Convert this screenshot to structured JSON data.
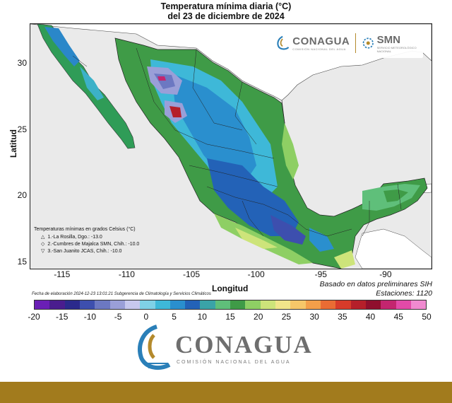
{
  "title": {
    "line1": "Temperatura mínima diaria (°C)",
    "line2": "del 23 de diciembre de 2024"
  },
  "map": {
    "x_axis": {
      "label": "Longitud",
      "ticks": [
        {
          "value": -115,
          "label": "-115"
        },
        {
          "value": -110,
          "label": "-110"
        },
        {
          "value": -105,
          "label": "-105"
        },
        {
          "value": -100,
          "label": "-100"
        },
        {
          "value": -95,
          "label": "-95"
        },
        {
          "value": -90,
          "label": "-90"
        }
      ]
    },
    "y_axis": {
      "label": "Latitud",
      "ticks": [
        {
          "value": 30,
          "label": "30"
        },
        {
          "value": 25,
          "label": "25"
        },
        {
          "value": 20,
          "label": "20"
        },
        {
          "value": 15,
          "label": "15"
        }
      ]
    },
    "extent": {
      "lon": [
        -117.5,
        -86.5
      ],
      "lat": [
        14.5,
        33
      ]
    },
    "legend": {
      "title": "Temperaturas mínimas en grados Celsius (°C)",
      "entries": [
        {
          "symbol": "△",
          "text": "1.-La Rosilla, Dgo.: -13.0"
        },
        {
          "symbol": "◇",
          "text": "2.-Cumbres de Majalca SMN, Chih.: -10.0"
        },
        {
          "symbol": "▽",
          "text": "3.-San Juanito JCAS, Chih.: -10.0"
        }
      ]
    },
    "basis_note": "Basado en datos preliminares SIH",
    "stations": "Estaciones: 1120",
    "footer_note": "Fecha de elaboración 2024-12-23 13:01:21 Subgerencia de Climatología y Servicios Climáticos",
    "colors": {
      "ocean": "#eaeaea",
      "us_land": "#ffffff",
      "border": "#222222"
    }
  },
  "logos": {
    "conagua_small": "CONAGUA",
    "conagua_small_sub": "COMISIÓN NACIONAL DEL AGUA",
    "smn": "SMN",
    "smn_sub": "SERVICIO METEOROLÓGICO NACIONAL"
  },
  "colorbar": {
    "colors": [
      "#6a1fb5",
      "#4a1d8e",
      "#2b2a8c",
      "#3d4fae",
      "#6c78c2",
      "#9a9fd8",
      "#c7c8ee",
      "#7fd1e6",
      "#3eb8d8",
      "#2a8fce",
      "#2362b7",
      "#3aa3a8",
      "#5fbf7a",
      "#3f9b47",
      "#8ecf64",
      "#cde47a",
      "#f1e58a",
      "#f6c769",
      "#f39f4a",
      "#e96c34",
      "#d73b2a",
      "#b51f2a",
      "#8f0f2d",
      "#c4256f",
      "#e24aa8",
      "#f08ad0"
    ],
    "labels": [
      {
        "value": -20,
        "text": "-20"
      },
      {
        "value": -15,
        "text": "-15"
      },
      {
        "value": -10,
        "text": "-10"
      },
      {
        "value": -5,
        "text": "-5"
      },
      {
        "value": 0,
        "text": "0"
      },
      {
        "value": 5,
        "text": "5"
      },
      {
        "value": 10,
        "text": "10"
      },
      {
        "value": 15,
        "text": "15"
      },
      {
        "value": 20,
        "text": "20"
      },
      {
        "value": 25,
        "text": "25"
      },
      {
        "value": 30,
        "text": "30"
      },
      {
        "value": 35,
        "text": "35"
      },
      {
        "value": 40,
        "text": "40"
      },
      {
        "value": 45,
        "text": "45"
      },
      {
        "value": 50,
        "text": "50"
      }
    ],
    "range": [
      -20,
      50
    ]
  },
  "brand": {
    "name": "CONAGUA",
    "subtitle": "COMISIÓN NACIONAL DEL AGUA",
    "color": "#6e6e6e"
  },
  "footer_bar_color": "#a27b1d"
}
